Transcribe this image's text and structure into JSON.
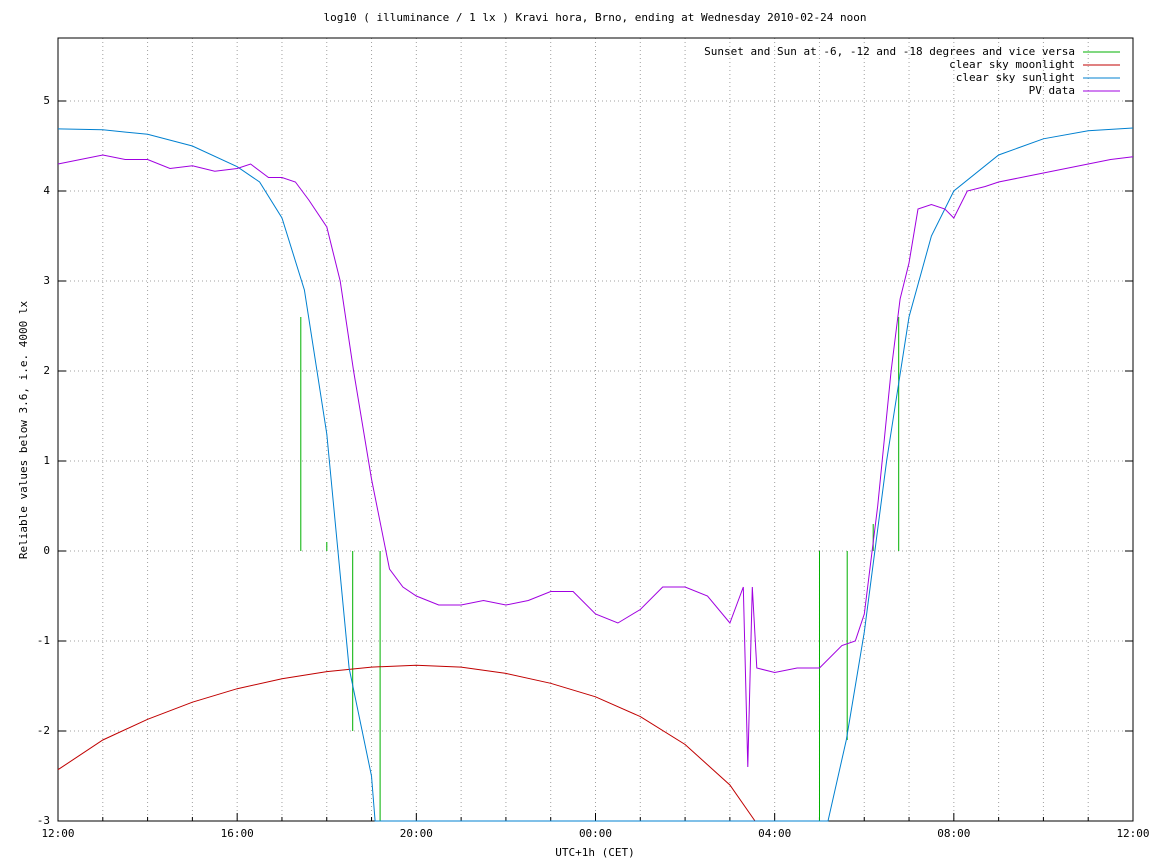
{
  "chart_data": {
    "type": "line",
    "title": "log10 ( illuminance / 1 lx ) Kravi hora, Brno, ending at Wednesday 2010-02-24 noon",
    "x_label": "UTC+1h (CET)",
    "y_label": "Reliable values below 3.6, i.e. 4000 lx",
    "xlim": [
      0,
      24
    ],
    "ylim": [
      -3,
      5.7
    ],
    "xticks": [
      {
        "value": 0,
        "label": "12:00"
      },
      {
        "value": 4,
        "label": "16:00"
      },
      {
        "value": 8,
        "label": "20:00"
      },
      {
        "value": 12,
        "label": "00:00"
      },
      {
        "value": 16,
        "label": "04:00"
      },
      {
        "value": 20,
        "label": "08:00"
      },
      {
        "value": 24,
        "label": "12:00"
      }
    ],
    "x_minor_ticks": [
      1,
      2,
      3,
      5,
      6,
      7,
      9,
      10,
      11,
      13,
      14,
      15,
      17,
      18,
      19,
      21,
      22,
      23
    ],
    "yticks": [
      -3,
      -2,
      -1,
      0,
      1,
      2,
      3,
      4,
      5
    ],
    "grid": true,
    "legend": "top-right",
    "series": [
      {
        "name": "Sunset and Sun at -6, -12 and -18 degrees and vice versa",
        "color": "#00b000",
        "x": [
          5.42,
          5.42,
          5.42,
          6.0,
          6.0,
          6.0,
          6.58,
          6.58,
          6.58,
          7.19,
          7.19,
          7.19,
          17.0,
          17.0,
          17.0,
          17.62,
          17.62,
          17.62,
          18.2,
          18.2,
          18.2,
          18.77,
          18.77
        ],
        "values": [
          0,
          2.6,
          null,
          0,
          0.1,
          null,
          0,
          -2.0,
          null,
          0,
          -3,
          null,
          0,
          -3,
          null,
          0,
          -2.1,
          null,
          0,
          0.3,
          null,
          0,
          2.6
        ]
      },
      {
        "name": "clear sky moonlight",
        "color": "#c00000",
        "x": [
          0,
          1,
          2,
          3,
          4,
          5,
          6,
          7,
          8,
          9,
          10,
          11,
          12,
          13,
          14,
          15,
          15.56
        ],
        "values": [
          -2.43,
          -2.1,
          -1.87,
          -1.68,
          -1.53,
          -1.42,
          -1.34,
          -1.29,
          -1.27,
          -1.29,
          -1.36,
          -1.47,
          -1.62,
          -1.84,
          -2.15,
          -2.6,
          -3
        ]
      },
      {
        "name": "clear sky sunlight",
        "color": "#0080d0",
        "x": [
          0,
          1,
          2,
          3,
          4,
          4.5,
          5,
          5.5,
          6,
          6.5,
          7,
          7.08,
          17.19,
          17.6,
          18,
          18.5,
          19,
          19.5,
          20,
          21,
          22,
          23,
          24
        ],
        "values": [
          4.69,
          4.68,
          4.63,
          4.5,
          4.27,
          4.1,
          3.7,
          2.9,
          1.3,
          -1.3,
          -2.5,
          -3,
          -3,
          -2.1,
          -0.9,
          1.0,
          2.6,
          3.5,
          4.0,
          4.4,
          4.58,
          4.67,
          4.7
        ]
      },
      {
        "name": "PV data",
        "color": "#a000e0",
        "x": [
          0,
          0.5,
          1,
          1.5,
          2,
          2.5,
          3,
          3.5,
          4,
          4.3,
          4.7,
          5,
          5.3,
          5.6,
          6,
          6.3,
          6.6,
          7,
          7.4,
          7.7,
          8,
          8.5,
          9,
          9.5,
          10,
          10.5,
          11,
          11.5,
          12,
          12.5,
          13,
          13.5,
          14,
          14.5,
          15,
          15.3,
          15.4,
          15.5,
          15.6,
          16,
          16.5,
          17,
          17.5,
          17.8,
          18,
          18.3,
          18.6,
          18.8,
          19,
          19.2,
          19.5,
          19.8,
          20,
          20.3,
          20.7,
          21,
          21.5,
          22,
          22.5,
          23,
          23.5,
          24
        ],
        "values": [
          4.3,
          4.35,
          4.4,
          4.35,
          4.35,
          4.25,
          4.28,
          4.22,
          4.25,
          4.3,
          4.15,
          4.15,
          4.1,
          3.9,
          3.6,
          3.0,
          2.0,
          0.8,
          -0.2,
          -0.4,
          -0.5,
          -0.6,
          -0.6,
          -0.55,
          -0.6,
          -0.55,
          -0.45,
          -0.45,
          -0.7,
          -0.8,
          -0.65,
          -0.4,
          -0.4,
          -0.5,
          -0.8,
          -0.4,
          -2.4,
          -0.4,
          -1.3,
          -1.35,
          -1.3,
          -1.3,
          -1.05,
          -1.0,
          -0.7,
          0.5,
          2.0,
          2.8,
          3.2,
          3.8,
          3.85,
          3.8,
          3.7,
          4.0,
          4.05,
          4.1,
          4.15,
          4.2,
          4.25,
          4.3,
          4.35,
          4.38
        ]
      }
    ]
  }
}
